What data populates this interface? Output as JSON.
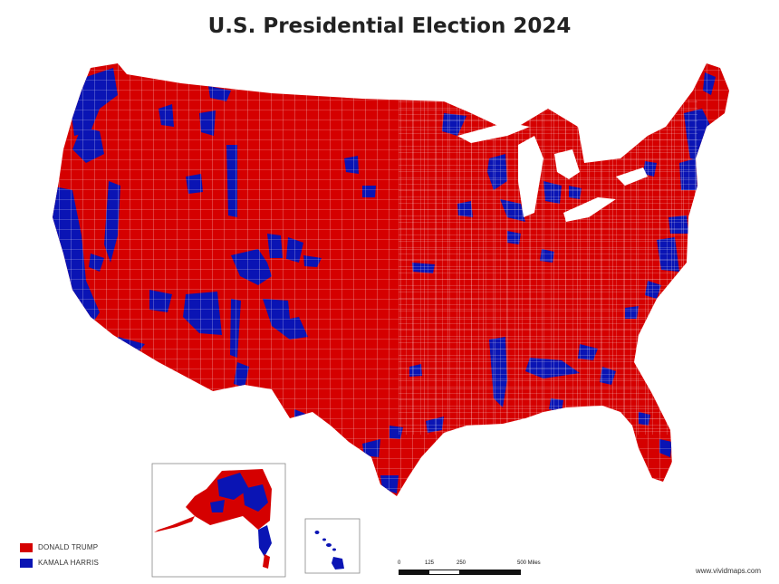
{
  "title": "U.S. Presidential Election 2024",
  "colors": {
    "trump": "#d50000",
    "harris": "#0a14b4",
    "county_lines": "#ffffff"
  },
  "legend": [
    {
      "label": "DONALD TRUMP",
      "color": "#d50000"
    },
    {
      "label": "KAMALA HARRIS",
      "color": "#0a14b4"
    }
  ],
  "scale": {
    "ticks": [
      "0",
      "125",
      "250",
      "500 Miles"
    ]
  },
  "credit": "www.vividmaps.com",
  "insets": [
    "alaska",
    "hawaii"
  ]
}
